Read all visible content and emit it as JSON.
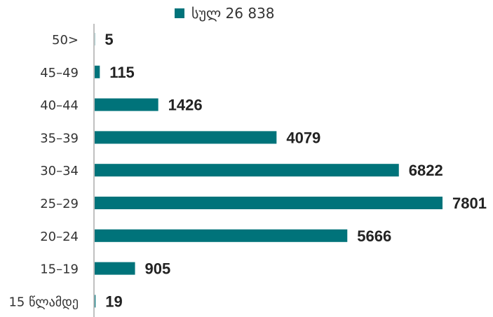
{
  "chart_data": {
    "type": "bar",
    "orientation": "horizontal",
    "categories": [
      "50>",
      "45–49",
      "40–44",
      "35–39",
      "30–34",
      "25–29",
      "20–24",
      "15–19",
      "15 წლამდე"
    ],
    "series": [
      {
        "name": "სულ 26 838",
        "values": [
          5,
          115,
          1426,
          4079,
          6822,
          7801,
          5666,
          905,
          19
        ],
        "labels": [
          "5",
          "115",
          "1426",
          "4079",
          "6822",
          "7801",
          "5666",
          "905",
          "19"
        ]
      }
    ],
    "xlim": [
      0,
      7801
    ],
    "legend_position": "top",
    "grid": false,
    "colors": {
      "bar": "#00737a",
      "axis": "#808080"
    }
  }
}
